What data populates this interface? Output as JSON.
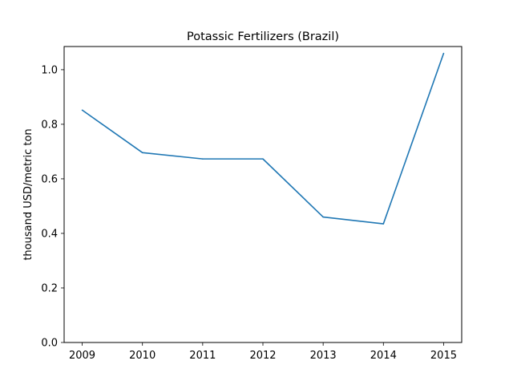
{
  "chart_data": {
    "type": "line",
    "title": "Potassic Fertilizers (Brazil)",
    "xlabel": "",
    "ylabel": "thousand USD/metric ton",
    "x": [
      "2009",
      "2010",
      "2011",
      "2012",
      "2013",
      "2014",
      "2015"
    ],
    "series": [
      {
        "values": [
          0.852,
          0.696,
          0.673,
          0.673,
          0.46,
          0.435,
          1.06
        ]
      }
    ],
    "xlim": [
      2008.7,
      2015.3
    ],
    "ylim": [
      0.0,
      1.085
    ],
    "yticks": [
      "0.0",
      "0.2",
      "0.4",
      "0.6",
      "0.8",
      "1.0"
    ],
    "ytick_values": [
      0.0,
      0.2,
      0.4,
      0.6,
      0.8,
      1.0
    ],
    "line_color": "#1f77b4",
    "grid": false,
    "legend": "none"
  }
}
